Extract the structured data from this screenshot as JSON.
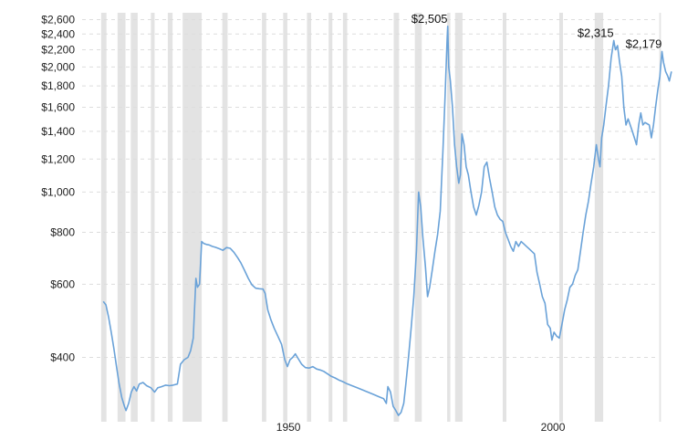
{
  "chart_data": {
    "type": "line",
    "title": "",
    "xlabel": "",
    "ylabel": "",
    "y_scale": "log",
    "ylim": [
      280,
      2700
    ],
    "xlim": [
      1911,
      2020
    ],
    "grid": "horizontal-dashed",
    "y_ticks": [
      {
        "value": 400,
        "label": "$400"
      },
      {
        "value": 600,
        "label": "$600"
      },
      {
        "value": 800,
        "label": "$800"
      },
      {
        "value": 1000,
        "label": "$1,000"
      },
      {
        "value": 1200,
        "label": "$1,200"
      },
      {
        "value": 1400,
        "label": "$1,400"
      },
      {
        "value": 1600,
        "label": "$1,600"
      },
      {
        "value": 1800,
        "label": "$1,800"
      },
      {
        "value": 2000,
        "label": "$2,000"
      },
      {
        "value": 2200,
        "label": "$2,200"
      },
      {
        "value": 2400,
        "label": "$2,400"
      },
      {
        "value": 2600,
        "label": "$2,600"
      }
    ],
    "x_ticks": [
      {
        "value": 1950,
        "label": "1950"
      },
      {
        "value": 2000,
        "label": "2000"
      }
    ],
    "recession_bands": [
      [
        1914.6,
        1915.6
      ],
      [
        1917.7,
        1919.2
      ],
      [
        1920.2,
        1921.5
      ],
      [
        1924.0,
        1924.7
      ],
      [
        1927.2,
        1928.1
      ],
      [
        1930.0,
        1933.6
      ],
      [
        1937.5,
        1938.5
      ],
      [
        1945.0,
        1945.8
      ],
      [
        1949.0,
        1949.8
      ],
      [
        1953.5,
        1954.3
      ],
      [
        1957.6,
        1958.3
      ],
      [
        1960.3,
        1961.1
      ],
      [
        1969.9,
        1970.9
      ],
      [
        1973.9,
        1975.2
      ],
      [
        1980.0,
        1980.6
      ],
      [
        1981.5,
        1982.9
      ],
      [
        1990.5,
        1991.2
      ],
      [
        2001.2,
        2001.9
      ],
      [
        2007.9,
        2009.5
      ],
      [
        2020.1,
        2020.4
      ]
    ],
    "series": [
      {
        "color": "#6aa2d8",
        "points": [
          [
            1915.0,
            545
          ],
          [
            1915.5,
            535
          ],
          [
            1916.0,
            500
          ],
          [
            1916.5,
            460
          ],
          [
            1917.0,
            420
          ],
          [
            1917.5,
            380
          ],
          [
            1918.0,
            345
          ],
          [
            1918.5,
            320
          ],
          [
            1919.0,
            305
          ],
          [
            1919.3,
            298
          ],
          [
            1919.8,
            310
          ],
          [
            1920.3,
            330
          ],
          [
            1920.8,
            340
          ],
          [
            1921.3,
            332
          ],
          [
            1921.8,
            345
          ],
          [
            1922.5,
            348
          ],
          [
            1923.2,
            342
          ],
          [
            1924.0,
            338
          ],
          [
            1924.7,
            330
          ],
          [
            1925.3,
            338
          ],
          [
            1926.0,
            340
          ],
          [
            1926.8,
            343
          ],
          [
            1927.5,
            342
          ],
          [
            1928.2,
            343
          ],
          [
            1929.0,
            345
          ],
          [
            1929.6,
            385
          ],
          [
            1930.3,
            395
          ],
          [
            1931.0,
            400
          ],
          [
            1931.5,
            415
          ],
          [
            1932.0,
            445
          ],
          [
            1932.5,
            620
          ],
          [
            1932.8,
            590
          ],
          [
            1933.2,
            600
          ],
          [
            1933.6,
            760
          ],
          [
            1934.0,
            752
          ],
          [
            1934.5,
            748
          ],
          [
            1935.0,
            746
          ],
          [
            1935.6,
            740
          ],
          [
            1936.2,
            736
          ],
          [
            1937.0,
            730
          ],
          [
            1937.6,
            724
          ],
          [
            1938.3,
            735
          ],
          [
            1939.0,
            732
          ],
          [
            1939.7,
            716
          ],
          [
            1940.4,
            695
          ],
          [
            1941.0,
            676
          ],
          [
            1941.7,
            648
          ],
          [
            1942.4,
            620
          ],
          [
            1943.1,
            598
          ],
          [
            1943.8,
            587
          ],
          [
            1944.5,
            585
          ],
          [
            1945.2,
            584
          ],
          [
            1945.6,
            570
          ],
          [
            1946.1,
            520
          ],
          [
            1946.7,
            492
          ],
          [
            1947.3,
            470
          ],
          [
            1948.0,
            450
          ],
          [
            1948.7,
            430
          ],
          [
            1949.3,
            395
          ],
          [
            1949.8,
            380
          ],
          [
            1950.3,
            395
          ],
          [
            1950.8,
            400
          ],
          [
            1951.3,
            408
          ],
          [
            1951.8,
            398
          ],
          [
            1952.5,
            385
          ],
          [
            1953.2,
            378
          ],
          [
            1953.9,
            377
          ],
          [
            1954.6,
            380
          ],
          [
            1955.3,
            375
          ],
          [
            1956.0,
            373
          ],
          [
            1956.7,
            370
          ],
          [
            1957.4,
            365
          ],
          [
            1958.1,
            360
          ],
          [
            1958.8,
            357
          ],
          [
            1959.5,
            353
          ],
          [
            1960.2,
            350
          ],
          [
            1961.0,
            346
          ],
          [
            1962.0,
            342
          ],
          [
            1963.0,
            338
          ],
          [
            1964.0,
            334
          ],
          [
            1965.0,
            330
          ],
          [
            1966.0,
            326
          ],
          [
            1967.0,
            322
          ],
          [
            1968.0,
            318
          ],
          [
            1968.5,
            310
          ],
          [
            1968.8,
            340
          ],
          [
            1969.3,
            330
          ],
          [
            1969.8,
            305
          ],
          [
            1970.3,
            298
          ],
          [
            1970.8,
            290
          ],
          [
            1971.3,
            295
          ],
          [
            1971.8,
            310
          ],
          [
            1972.2,
            345
          ],
          [
            1972.7,
            400
          ],
          [
            1973.2,
            470
          ],
          [
            1973.7,
            560
          ],
          [
            1974.2,
            720
          ],
          [
            1974.6,
            1000
          ],
          [
            1975.0,
            920
          ],
          [
            1975.4,
            780
          ],
          [
            1975.9,
            660
          ],
          [
            1976.3,
            560
          ],
          [
            1976.7,
            590
          ],
          [
            1977.2,
            650
          ],
          [
            1977.7,
            720
          ],
          [
            1978.2,
            790
          ],
          [
            1978.7,
            900
          ],
          [
            1979.2,
            1250
          ],
          [
            1979.6,
            1700
          ],
          [
            1980.0,
            2350
          ],
          [
            1980.1,
            2505
          ],
          [
            1980.3,
            2000
          ],
          [
            1980.6,
            1850
          ],
          [
            1981.0,
            1600
          ],
          [
            1981.4,
            1300
          ],
          [
            1981.8,
            1150
          ],
          [
            1982.2,
            1050
          ],
          [
            1982.5,
            1100
          ],
          [
            1982.8,
            1380
          ],
          [
            1983.2,
            1300
          ],
          [
            1983.6,
            1150
          ],
          [
            1984.0,
            1100
          ],
          [
            1984.5,
            1000
          ],
          [
            1985.0,
            920
          ],
          [
            1985.5,
            880
          ],
          [
            1986.0,
            930
          ],
          [
            1986.5,
            1000
          ],
          [
            1987.0,
            1150
          ],
          [
            1987.5,
            1180
          ],
          [
            1988.0,
            1080
          ],
          [
            1988.5,
            1000
          ],
          [
            1989.0,
            920
          ],
          [
            1989.5,
            880
          ],
          [
            1990.0,
            860
          ],
          [
            1990.5,
            850
          ],
          [
            1991.0,
            800
          ],
          [
            1991.5,
            770
          ],
          [
            1992.0,
            740
          ],
          [
            1992.5,
            720
          ],
          [
            1993.0,
            760
          ],
          [
            1993.5,
            740
          ],
          [
            1994.0,
            760
          ],
          [
            1994.5,
            750
          ],
          [
            1995.0,
            740
          ],
          [
            1995.5,
            730
          ],
          [
            1996.0,
            720
          ],
          [
            1996.5,
            710
          ],
          [
            1997.0,
            640
          ],
          [
            1997.5,
            600
          ],
          [
            1998.0,
            560
          ],
          [
            1998.5,
            540
          ],
          [
            1999.0,
            480
          ],
          [
            1999.5,
            470
          ],
          [
            1999.8,
            440
          ],
          [
            2000.2,
            460
          ],
          [
            2000.7,
            450
          ],
          [
            2001.2,
            445
          ],
          [
            2001.7,
            480
          ],
          [
            2002.2,
            520
          ],
          [
            2002.7,
            550
          ],
          [
            2003.2,
            590
          ],
          [
            2003.7,
            600
          ],
          [
            2004.2,
            630
          ],
          [
            2004.7,
            650
          ],
          [
            2005.2,
            720
          ],
          [
            2005.7,
            800
          ],
          [
            2006.2,
            880
          ],
          [
            2006.7,
            950
          ],
          [
            2007.2,
            1050
          ],
          [
            2007.7,
            1150
          ],
          [
            2008.2,
            1300
          ],
          [
            2008.6,
            1200
          ],
          [
            2008.9,
            1150
          ],
          [
            2009.2,
            1350
          ],
          [
            2009.6,
            1450
          ],
          [
            2010.0,
            1600
          ],
          [
            2010.5,
            1800
          ],
          [
            2011.0,
            2100
          ],
          [
            2011.5,
            2315
          ],
          [
            2011.8,
            2200
          ],
          [
            2012.2,
            2250
          ],
          [
            2012.6,
            2050
          ],
          [
            2013.0,
            1900
          ],
          [
            2013.4,
            1600
          ],
          [
            2013.8,
            1450
          ],
          [
            2014.2,
            1500
          ],
          [
            2014.6,
            1450
          ],
          [
            2015.0,
            1400
          ],
          [
            2015.4,
            1350
          ],
          [
            2015.8,
            1300
          ],
          [
            2016.2,
            1450
          ],
          [
            2016.6,
            1550
          ],
          [
            2017.0,
            1450
          ],
          [
            2017.4,
            1470
          ],
          [
            2017.8,
            1460
          ],
          [
            2018.2,
            1450
          ],
          [
            2018.6,
            1350
          ],
          [
            2019.0,
            1450
          ],
          [
            2019.4,
            1600
          ],
          [
            2019.8,
            1750
          ],
          [
            2020.2,
            1900
          ],
          [
            2020.6,
            2179
          ],
          [
            2020.9,
            2050
          ],
          [
            2021.3,
            1950
          ],
          [
            2021.7,
            1900
          ],
          [
            2022.0,
            1850
          ],
          [
            2022.4,
            1950
          ]
        ]
      }
    ],
    "annotations": [
      {
        "x": 1980.1,
        "y": 2505,
        "label": "$2,505"
      },
      {
        "x": 2011.5,
        "y": 2315,
        "label": "$2,315"
      },
      {
        "x": 2020.6,
        "y": 2179,
        "label": "$2,179"
      }
    ]
  }
}
